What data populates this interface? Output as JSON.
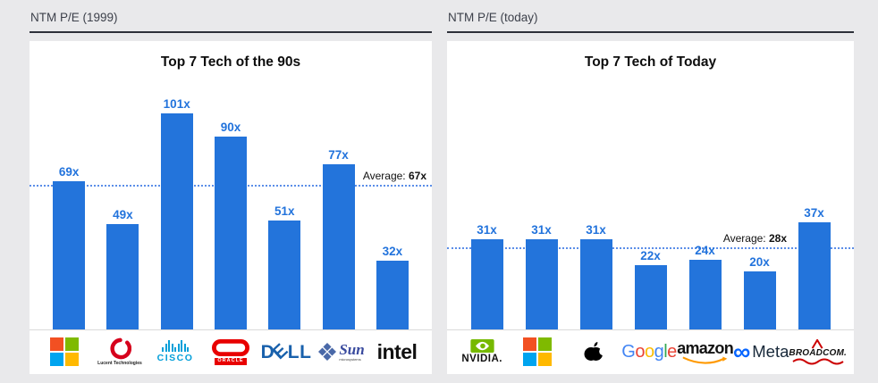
{
  "chart_data": [
    {
      "type": "bar",
      "section_header": "NTM P/E (1999)",
      "title": "Top 7 Tech of the 90s",
      "categories": [
        "Microsoft",
        "Lucent Technologies",
        "Cisco",
        "Oracle",
        "Dell",
        "Sun Microsystems",
        "Intel"
      ],
      "values": [
        69,
        49,
        101,
        90,
        51,
        77,
        32
      ],
      "value_labels": [
        "69x",
        "49x",
        "101x",
        "90x",
        "51x",
        "77x",
        "32x"
      ],
      "average": 67,
      "average_prefix": "Average: ",
      "average_value_label": "67x",
      "bar_color": "#2374db",
      "ylabel": "NTM P/E",
      "xlabel": "",
      "grid": "off",
      "legend": "none"
    },
    {
      "type": "bar",
      "section_header": "NTM P/E (today)",
      "title": "Top 7 Tech of Today",
      "categories": [
        "Nvidia",
        "Microsoft",
        "Apple",
        "Google",
        "Amazon",
        "Meta",
        "Broadcom"
      ],
      "values": [
        31,
        31,
        31,
        22,
        24,
        20,
        37
      ],
      "value_labels": [
        "31x",
        "31x",
        "31x",
        "22x",
        "24x",
        "20x",
        "37x"
      ],
      "average": 28,
      "average_prefix": "Average: ",
      "average_value_label": "28x",
      "bar_color": "#2374db",
      "ylabel": "NTM P/E",
      "xlabel": "",
      "grid": "off",
      "legend": "none"
    }
  ],
  "logos": {
    "lucent": "Lucent Technologies",
    "cisco": "CISCO",
    "oracle": "ORACLE",
    "dell_d": "D",
    "dell_e": "E",
    "dell_ll": "LL",
    "sun": "Sun",
    "sun_sub": "microsystems",
    "intel": "intel",
    "nvidia": "NVIDIA.",
    "google": [
      "G",
      "o",
      "o",
      "g",
      "l",
      "e"
    ],
    "google_colors": [
      "#4285F4",
      "#EA4335",
      "#FBBC05",
      "#4285F4",
      "#34A853",
      "#EA4335"
    ],
    "amazon": "amazon",
    "meta": "Meta",
    "meta_infinity": "∞",
    "broadcom": "BROADCOM."
  },
  "colors": {
    "bar_blue": "#2374db",
    "average_line_blue": "#5b8ee8",
    "background": "#e9e9eb",
    "panel": "#ffffff"
  }
}
